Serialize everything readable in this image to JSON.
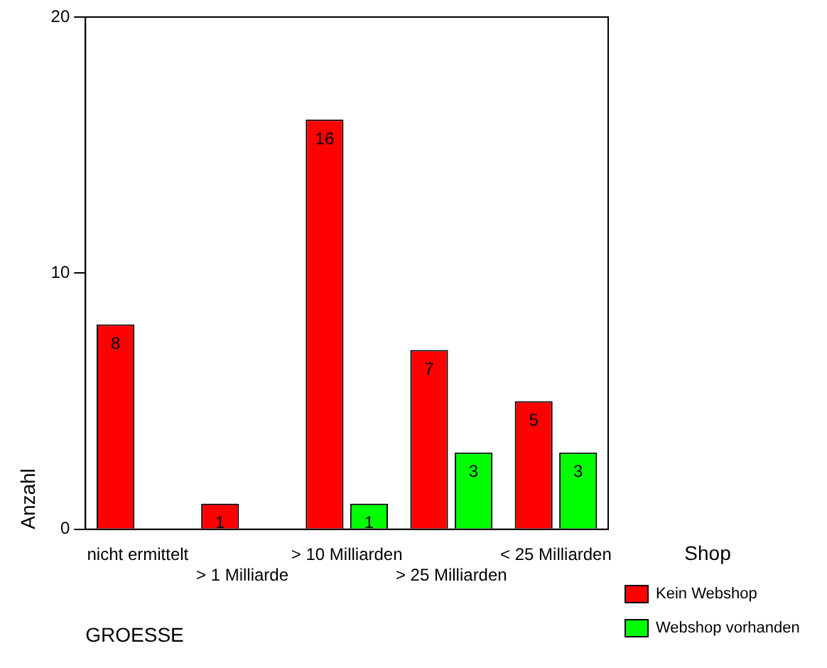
{
  "chart_data": {
    "type": "bar",
    "xlabel": "GROESSE",
    "ylabel": "Anzahl",
    "legend_title": "Shop",
    "categories": [
      "nicht ermittelt",
      "> 1 Milliarde",
      "> 10 Milliarden",
      "> 25 Milliarden",
      "< 25 Milliarden"
    ],
    "series": [
      {
        "name": "Kein Webshop",
        "color": "#ff0000",
        "values": [
          8,
          1,
          16,
          7,
          5
        ]
      },
      {
        "name": "Webshop vorhanden",
        "color": "#00ff00",
        "values": [
          null,
          null,
          1,
          3,
          3
        ]
      }
    ],
    "ylim": [
      0,
      20
    ],
    "yticks": [
      0,
      10,
      20
    ],
    "grid": false,
    "legend": "right",
    "data_labels": true
  }
}
